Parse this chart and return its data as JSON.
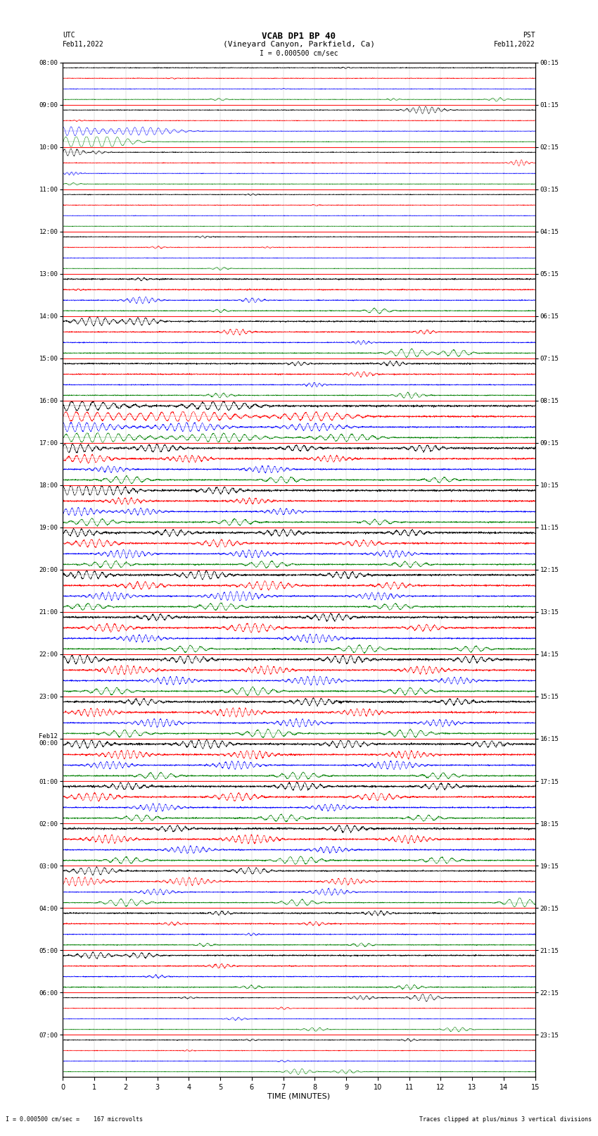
{
  "title_line1": "VCAB DP1 BP 40",
  "title_line2": "(Vineyard Canyon, Parkfield, Ca)",
  "scale_label": "I = 0.000500 cm/sec",
  "utc_label_line1": "UTC",
  "utc_label_line2": "Feb11,2022",
  "pst_label_line1": "PST",
  "pst_label_line2": "Feb11,2022",
  "xlabel": "TIME (MINUTES)",
  "footer_left": "I = 0.000500 cm/sec =    167 microvolts",
  "footer_right": "Traces clipped at plus/minus 3 vertical divisions",
  "x_min": 0,
  "x_max": 15,
  "x_ticks": [
    0,
    1,
    2,
    3,
    4,
    5,
    6,
    7,
    8,
    9,
    10,
    11,
    12,
    13,
    14,
    15
  ],
  "colors": [
    "black",
    "red",
    "blue",
    "green"
  ],
  "fig_width": 8.5,
  "fig_height": 16.13,
  "n_time_blocks": 24,
  "hour_labels_utc": [
    "08:00",
    "09:00",
    "10:00",
    "11:00",
    "12:00",
    "13:00",
    "14:00",
    "15:00",
    "16:00",
    "17:00",
    "18:00",
    "19:00",
    "20:00",
    "21:00",
    "22:00",
    "23:00",
    "Feb12\n00:00",
    "01:00",
    "02:00",
    "03:00",
    "04:00",
    "05:00",
    "06:00",
    "07:00"
  ],
  "hour_labels_pst": [
    "00:15",
    "01:15",
    "02:15",
    "03:15",
    "04:15",
    "05:15",
    "06:15",
    "07:15",
    "08:15",
    "09:15",
    "10:15",
    "11:15",
    "12:15",
    "13:15",
    "14:15",
    "15:15",
    "16:15",
    "17:15",
    "18:15",
    "19:15",
    "20:15",
    "21:15",
    "22:15",
    "23:15"
  ]
}
